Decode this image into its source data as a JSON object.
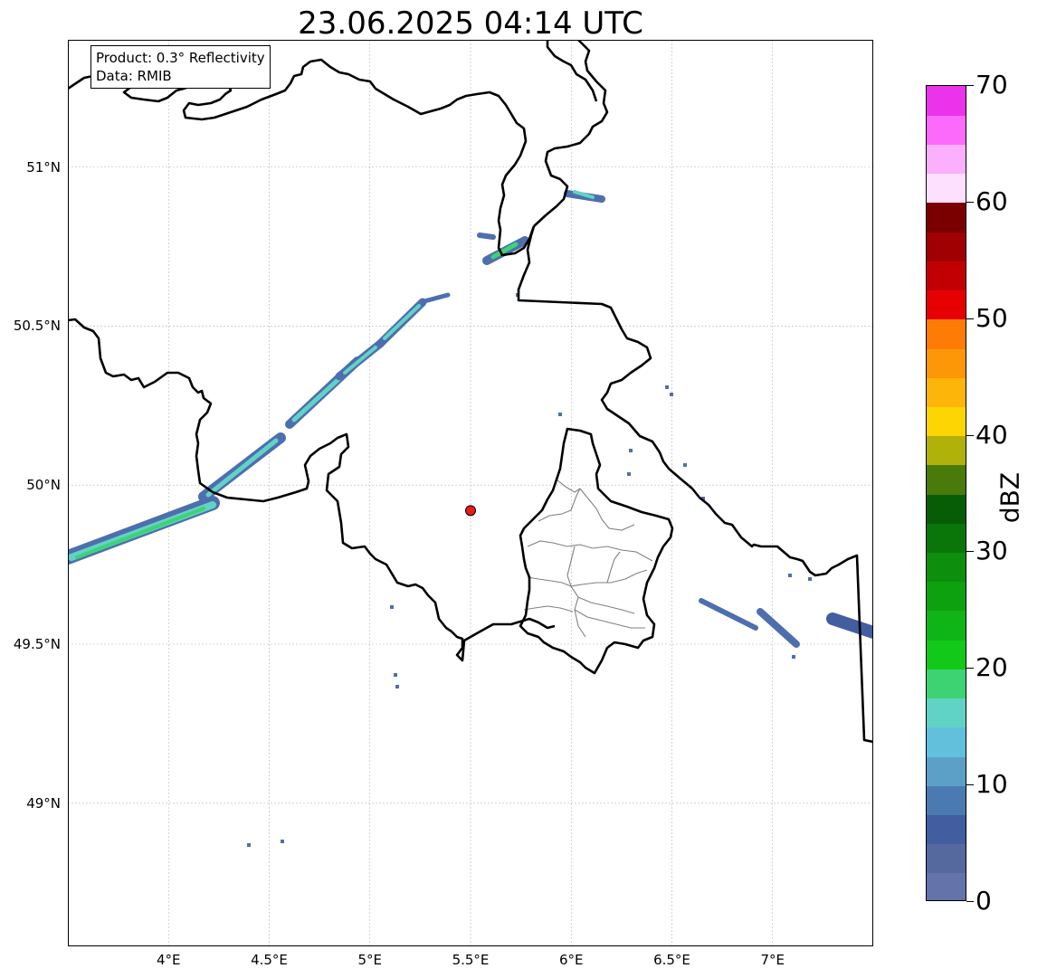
{
  "title": "23.06.2025 04:14 UTC",
  "info_box": {
    "product": "Product: 0.3° Reflectivity",
    "data": "Data: RMIB"
  },
  "map": {
    "lon_range": [
      3.5,
      7.5
    ],
    "lat_range": [
      48.55,
      51.4
    ],
    "lat_ticks": [
      {
        "value": 49.0,
        "label": "49°N"
      },
      {
        "value": 49.5,
        "label": "49.5°N"
      },
      {
        "value": 50.0,
        "label": "50°N"
      },
      {
        "value": 50.5,
        "label": "50.5°N"
      },
      {
        "value": 51.0,
        "label": "51°N"
      }
    ],
    "lon_ticks": [
      {
        "value": 4.0,
        "label": "4°E"
      },
      {
        "value": 4.5,
        "label": "4.5°E"
      },
      {
        "value": 5.0,
        "label": "5°E"
      },
      {
        "value": 5.5,
        "label": "5.5°E"
      },
      {
        "value": 6.0,
        "label": "6°E"
      },
      {
        "value": 6.5,
        "label": "6.5°E"
      },
      {
        "value": 7.0,
        "label": "7°E"
      }
    ],
    "radar_site": {
      "lon": 5.5,
      "lat": 49.92,
      "color": "#e8191b"
    },
    "border_color": "#000000",
    "province_color": "#808080",
    "grid": true
  },
  "colorbar": {
    "label": "dBZ",
    "min": 0,
    "max": 70,
    "ticks": [
      {
        "value": 0,
        "label": "0"
      },
      {
        "value": 10,
        "label": "10"
      },
      {
        "value": 20,
        "label": "20"
      },
      {
        "value": 30,
        "label": "30"
      },
      {
        "value": 40,
        "label": "40"
      },
      {
        "value": 50,
        "label": "50"
      },
      {
        "value": 60,
        "label": "60"
      },
      {
        "value": 70,
        "label": "70"
      }
    ],
    "colors": [
      "#6473a9",
      "#55699f",
      "#425ea0",
      "#4b7ab3",
      "#5ca0c8",
      "#62c0dc",
      "#61d3c6",
      "#3dd373",
      "#12c91a",
      "#0fb516",
      "#0ea10f",
      "#0d8f0d",
      "#0a760a",
      "#065d06",
      "#497a0a",
      "#b0b109",
      "#fcd503",
      "#fcb508",
      "#fd9707",
      "#fe7b05",
      "#e70002",
      "#c20004",
      "#a00001",
      "#7a0000",
      "#fde0fd",
      "#fcaffc",
      "#fc6afc",
      "#ea33ea"
    ]
  },
  "precipitation": {
    "colors": {
      "weak": "#4d6fae",
      "light": "#5ca0c8",
      "moderate": "#61d3c6",
      "core": "#3dd373"
    }
  }
}
